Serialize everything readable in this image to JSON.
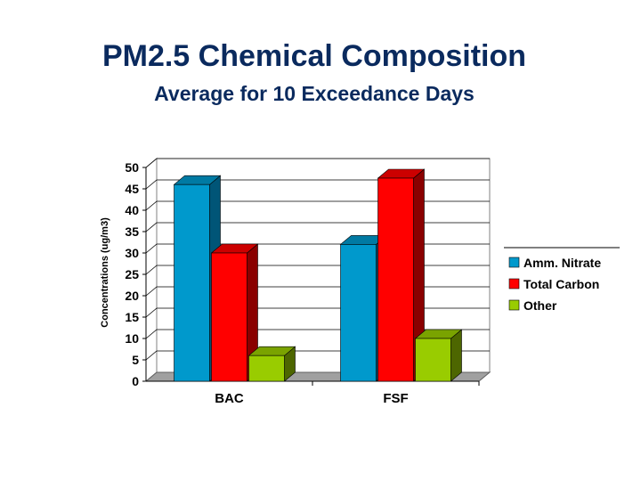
{
  "chart_data": {
    "type": "bar",
    "title": "PM2.5 Chemical Composition",
    "subtitle": "Average for 10 Exceedance Days",
    "ylabel": "Concentrations (ug/m3)",
    "xlabel": "",
    "categories": [
      "BAC",
      "FSF"
    ],
    "series": [
      {
        "name": "Amm. Nitrate",
        "values": [
          46,
          32
        ]
      },
      {
        "name": "Total Carbon",
        "values": [
          30,
          47.5
        ]
      },
      {
        "name": "Other",
        "values": [
          6,
          10
        ]
      }
    ],
    "ylim": [
      0,
      50
    ],
    "yticks": [
      "0",
      "5",
      "10",
      "15",
      "20",
      "25",
      "30",
      "35",
      "40",
      "45",
      "50"
    ],
    "grid": true,
    "legend_position": "right",
    "colors": {
      "series": [
        "#0099cc",
        "#ff0000",
        "#99cc00"
      ],
      "series_side": [
        "#005577",
        "#8a0000",
        "#4d6600"
      ],
      "series_top": [
        "#007aa3",
        "#cc0000",
        "#7aa300"
      ]
    }
  }
}
